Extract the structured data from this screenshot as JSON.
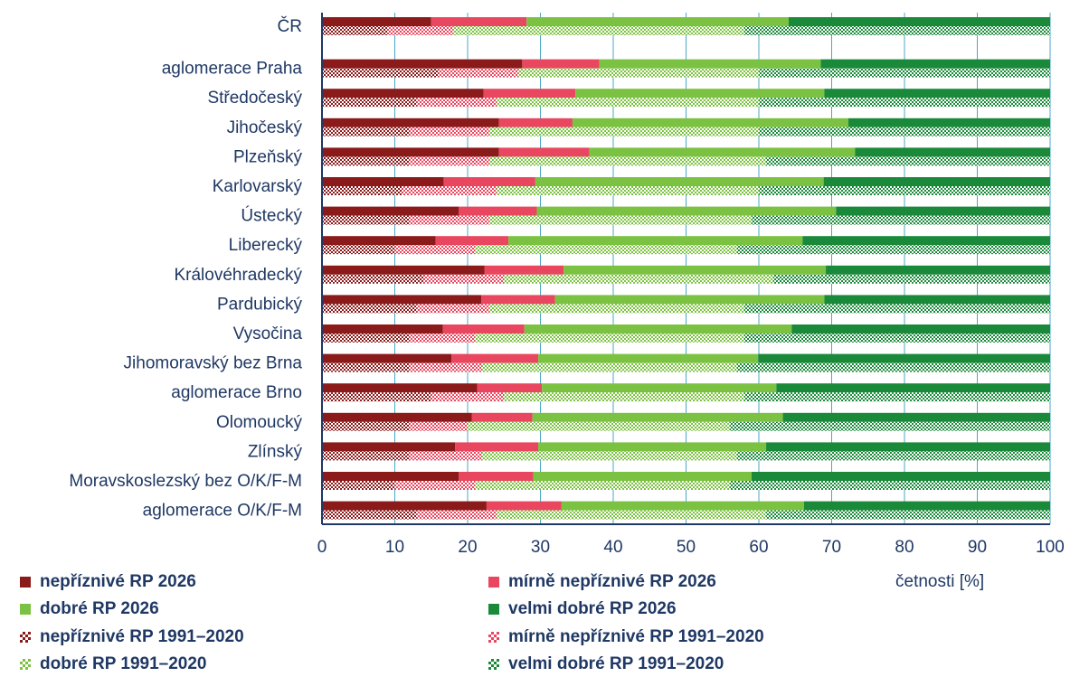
{
  "chart_data": {
    "type": "bar",
    "orientation": "horizontal",
    "stacked": true,
    "categories": [
      "ČR",
      "aglomerace Praha",
      "Středočeský",
      "Jihočeský",
      "Plzeňský",
      "Karlovarský",
      "Ústecký",
      "Liberecký",
      "Královéhradecký",
      "Pardubický",
      "Vysočina",
      "Jihomoravský bez Brna",
      "aglomerace Brno",
      "Olomoucký",
      "Zlínský",
      "Moravskoslezský bez O/K/F-M",
      "aglomerace O/K/F-M"
    ],
    "xlim": [
      0,
      100
    ],
    "xticks": [
      0,
      10,
      20,
      30,
      40,
      50,
      60,
      70,
      80,
      90,
      100
    ],
    "xlabel": "četnosti [%]",
    "grid": "vertical",
    "groups": [
      {
        "name": "RP 2026",
        "pattern": "solid",
        "series": [
          {
            "name": "nepříznivé RP 2026",
            "color": "#8b1a1a",
            "values": [
              15,
              27.5,
              22.2,
              24.3,
              24.3,
              16.7,
              18.8,
              15.6,
              22.3,
              21.9,
              16.6,
              17.8,
              21.3,
              20.6,
              18.3,
              18.8,
              22.6
            ]
          },
          {
            "name": "mírně nepříznivé RP 2026",
            "color": "#e8475f",
            "values": [
              13.1,
              10.6,
              12.6,
              10.1,
              12.4,
              12.6,
              10.7,
              10,
              10.9,
              10.1,
              11.2,
              11.9,
              8.9,
              8.3,
              11.4,
              10.2,
              10.3
            ]
          },
          {
            "name": "dobré RP 2026",
            "color": "#7cc242",
            "values": [
              36,
              30.4,
              34.2,
              37.9,
              36.5,
              39.6,
              41.1,
              40.4,
              36,
              37,
              36.7,
              30.2,
              32.2,
              34.4,
              31.3,
              30,
              33.3
            ]
          },
          {
            "name": "velmi dobré RP 2026",
            "color": "#1a8a3a",
            "values": [
              35.9,
              31.5,
              31,
              27.7,
              26.8,
              31.1,
              29.4,
              34,
              30.8,
              31,
              35.5,
              40.1,
              37.6,
              36.7,
              39,
              41,
              33.8
            ]
          }
        ]
      },
      {
        "name": "RP 1991–2020",
        "pattern": "checker",
        "series": [
          {
            "name": "nepříznivé RP 1991–2020",
            "color": "#8b1a1a",
            "values": [
              9,
              16,
              13,
              12,
              12,
              11,
              12,
              10,
              14,
              13,
              12,
              12,
              15,
              12,
              12,
              10,
              13
            ]
          },
          {
            "name": "mírně nepříznivé RP 1991–2020",
            "color": "#e8475f",
            "values": [
              9,
              11,
              11,
              11,
              11,
              13,
              11,
              11,
              11,
              10,
              9,
              10,
              10,
              8,
              10,
              11,
              11
            ]
          },
          {
            "name": "dobré RP 1991–2020",
            "color": "#7cc242",
            "values": [
              40,
              33,
              36,
              37,
              38,
              36,
              36,
              36,
              37,
              35,
              37,
              35,
              33,
              36,
              35,
              35,
              37
            ]
          },
          {
            "name": "velmi dobré RP 1991–2020",
            "color": "#1a8a3a",
            "values": [
              42,
              40,
              40,
              40,
              39,
              40,
              41,
              43,
              38,
              42,
              42,
              43,
              42,
              44,
              43,
              44,
              39
            ]
          }
        ]
      }
    ]
  },
  "legend": {
    "items": [
      {
        "label": "nepříznivé RP 2026",
        "color": "#8b1a1a",
        "pattern": "solid"
      },
      {
        "label": "mírně nepříznivé RP 2026",
        "color": "#e8475f",
        "pattern": "solid"
      },
      {
        "label": "dobré RP 2026",
        "color": "#7cc242",
        "pattern": "solid"
      },
      {
        "label": "velmi dobré RP 2026",
        "color": "#1a8a3a",
        "pattern": "solid"
      },
      {
        "label": "nepříznivé RP 1991–2020",
        "color": "#8b1a1a",
        "pattern": "checker"
      },
      {
        "label": "mírně nepříznivé RP 1991–2020",
        "color": "#e8475f",
        "pattern": "checker"
      },
      {
        "label": "dobré RP 1991–2020",
        "color": "#7cc242",
        "pattern": "checker"
      },
      {
        "label": "velmi dobré RP 1991–2020",
        "color": "#1a8a3a",
        "pattern": "checker"
      }
    ]
  },
  "colors": {
    "text": "#1f3864",
    "grid": "#4aa8c7",
    "axis": "#1f3864"
  }
}
